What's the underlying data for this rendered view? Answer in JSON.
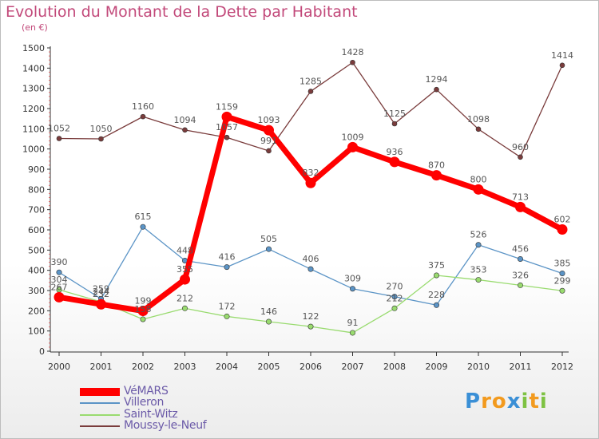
{
  "chart_data": {
    "type": "line",
    "title": "Evolution du Montant de la Dette par Habitant",
    "subtitle": "(en €)",
    "x": [
      "2000",
      "2001",
      "2002",
      "2003",
      "2004",
      "2005",
      "2006",
      "2007",
      "2008",
      "2009",
      "2010",
      "2011",
      "2012"
    ],
    "ylim": [
      0,
      1500
    ],
    "yticks": [
      0,
      100,
      200,
      300,
      400,
      500,
      600,
      700,
      800,
      900,
      1000,
      1100,
      1200,
      1300,
      1400,
      1500
    ],
    "grid": false,
    "legend_position": "bottom-left",
    "series": [
      {
        "name": "VéMARS",
        "color": "#ff0000",
        "values": [
          267,
          232,
          199,
          355,
          1159,
          1093,
          832,
          1009,
          936,
          870,
          800,
          713,
          602
        ]
      },
      {
        "name": "Villeron",
        "color": "#5b94c6",
        "values": [
          390,
          259,
          615,
          448,
          416,
          505,
          406,
          309,
          270,
          228,
          526,
          456,
          385
        ]
      },
      {
        "name": "Saint-Witz",
        "color": "#99db6f",
        "values": [
          304,
          244,
          158,
          212,
          172,
          146,
          122,
          91,
          212,
          375,
          353,
          326,
          299
        ]
      },
      {
        "name": "Moussy-le-Neuf",
        "color": "#7a3c3c",
        "values": [
          1052,
          1050,
          1160,
          1094,
          1057,
          991,
          1285,
          1428,
          1125,
          1294,
          1098,
          960,
          1414
        ]
      }
    ]
  },
  "logo": {
    "letters": [
      "P",
      "r",
      "o",
      "x",
      "i",
      "t",
      "i"
    ],
    "colors": [
      "#3a8fd6",
      "#f29a1e",
      "#f29a1e",
      "#3a8fd6",
      "#7ec242",
      "#f29a1e",
      "#7ec242"
    ]
  }
}
